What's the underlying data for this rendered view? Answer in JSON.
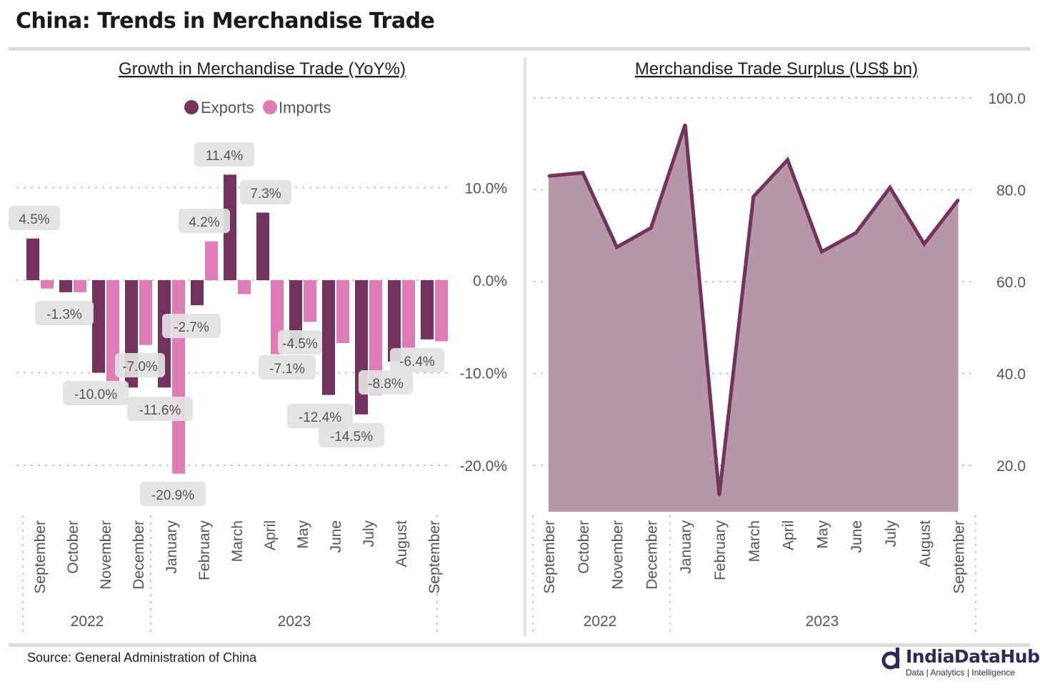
{
  "page": {
    "title": "China: Trends in Merchandise Trade",
    "source": "Source: General Administration of China",
    "logo_name": "IndiaDataHub",
    "logo_tagline": "Data | Analytics | Intelligence"
  },
  "colors": {
    "exports": "#74325f",
    "imports": "#e07cb5",
    "area_fill": "#b597a7",
    "area_line": "#74325f",
    "label_bg": "#e2e2e2",
    "logo": "#2b2a5c"
  },
  "chart_data": [
    {
      "type": "bar",
      "title": "Growth in Merchandise Trade (YoY%)",
      "categories": [
        "September",
        "October",
        "November",
        "December",
        "January",
        "February",
        "March",
        "April",
        "May",
        "June",
        "July",
        "August",
        "September"
      ],
      "year_groups": [
        {
          "label": "2022",
          "count": 4
        },
        {
          "label": "2023",
          "count": 9
        }
      ],
      "legend": [
        "Exports",
        "Imports"
      ],
      "legend_position": "top-center",
      "series": [
        {
          "name": "Exports",
          "values": [
            4.5,
            -1.3,
            -10.0,
            -11.6,
            -11.6,
            -2.7,
            11.4,
            7.3,
            -7.1,
            -12.4,
            -14.5,
            -8.8,
            -6.4
          ]
        },
        {
          "name": "Imports",
          "values": [
            -0.9,
            -1.3,
            -10.9,
            -7.0,
            -20.9,
            4.2,
            -1.5,
            -8.0,
            -4.5,
            -6.8,
            -12.4,
            -7.3,
            -6.6
          ]
        }
      ],
      "data_labels": [
        {
          "text": "4.5%",
          "category": 0,
          "value": 4.5
        },
        {
          "text": "-1.3%",
          "category": 1,
          "value": -1.3
        },
        {
          "text": "-10.0%",
          "category": 2,
          "value": -10.0
        },
        {
          "text": "-7.0%",
          "category": 3,
          "value": -7.0
        },
        {
          "text": "-11.6%",
          "category": 3,
          "value": -11.6
        },
        {
          "text": "-20.9%",
          "category": 4,
          "value": -20.9
        },
        {
          "text": "-2.7%",
          "category": 5,
          "value": -2.7
        },
        {
          "text": "4.2%",
          "category": 5,
          "value": 4.2
        },
        {
          "text": "11.4%",
          "category": 6,
          "value": 11.4
        },
        {
          "text": "7.3%",
          "category": 7,
          "value": 7.3
        },
        {
          "text": "-7.1%",
          "category": 8,
          "value": -7.1
        },
        {
          "text": "-4.5%",
          "category": 8,
          "value": -4.5
        },
        {
          "text": "-12.4%",
          "category": 9,
          "value": -12.4
        },
        {
          "text": "-14.5%",
          "category": 10,
          "value": -14.5
        },
        {
          "text": "-8.8%",
          "category": 11,
          "value": -8.8
        },
        {
          "text": "-6.4%",
          "category": 12,
          "value": -6.4
        }
      ],
      "y_ticks": [
        {
          "value": 10,
          "label": "10.0%"
        },
        {
          "value": 0,
          "label": "0.0%"
        },
        {
          "value": -10,
          "label": "-10.0%"
        },
        {
          "value": -20,
          "label": "-20.0%"
        }
      ],
      "ylim": [
        -25,
        15
      ],
      "grid": "dotted horizontal",
      "y_axis_position": "right"
    },
    {
      "type": "area",
      "title": "Merchandise Trade Surplus (US$ bn)",
      "categories": [
        "September",
        "October",
        "November",
        "December",
        "January",
        "February",
        "March",
        "April",
        "May",
        "June",
        "July",
        "August",
        "September"
      ],
      "year_groups": [
        {
          "label": "2022",
          "count": 4
        },
        {
          "label": "2023",
          "count": 9
        }
      ],
      "series": [
        {
          "name": "Trade surplus",
          "values": [
            83.0,
            83.7,
            67.5,
            71.7,
            94.2,
            13.5,
            78.5,
            86.5,
            66.5,
            70.6,
            80.5,
            68.2,
            77.8
          ]
        }
      ],
      "y_ticks": [
        {
          "value": 100,
          "label": "100.0"
        },
        {
          "value": 80,
          "label": "80.0"
        },
        {
          "value": 60,
          "label": "60.0"
        },
        {
          "value": 40,
          "label": "40.0"
        },
        {
          "value": 20,
          "label": "20.0"
        }
      ],
      "ylim": [
        10,
        100
      ],
      "grid": "dotted horizontal",
      "y_axis_position": "right"
    }
  ]
}
